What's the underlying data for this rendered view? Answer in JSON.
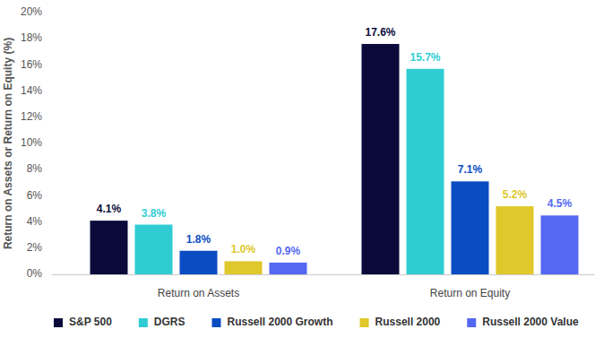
{
  "chart_data": {
    "type": "bar",
    "y_label": "Return on Assets or Return on Equity (%)",
    "categories": [
      "Return on Assets",
      "Return on Equity"
    ],
    "series": [
      {
        "name": "S&P 500",
        "color": "#0b0a3b",
        "values": [
          4.1,
          17.6
        ],
        "value_labels": [
          "4.1%",
          "17.6%"
        ]
      },
      {
        "name": "DGRS",
        "color": "#2fcdd3",
        "values": [
          3.8,
          15.7
        ],
        "value_labels": [
          "3.8%",
          "15.7%"
        ]
      },
      {
        "name": "Russell 2000 Growth",
        "color": "#0a4cc2",
        "values": [
          1.8,
          7.1
        ],
        "value_labels": [
          "1.8%",
          "7.1%"
        ]
      },
      {
        "name": "Russell 2000",
        "color": "#e0c72b",
        "values": [
          1.0,
          5.2
        ],
        "value_labels": [
          "1.0%",
          "5.2%"
        ]
      },
      {
        "name": "Russell 2000 Value",
        "color": "#5468f2",
        "values": [
          0.9,
          4.5
        ],
        "value_labels": [
          "0.9%",
          "4.5%"
        ]
      }
    ],
    "ylim": [
      0,
      20
    ],
    "yticks": [
      {
        "value": 0,
        "label": "0%"
      },
      {
        "value": 2,
        "label": "2%"
      },
      {
        "value": 4,
        "label": "4%"
      },
      {
        "value": 6,
        "label": "6%"
      },
      {
        "value": 8,
        "label": "8%"
      },
      {
        "value": 10,
        "label": "10%"
      },
      {
        "value": 12,
        "label": "12%"
      },
      {
        "value": 14,
        "label": "14%"
      },
      {
        "value": 16,
        "label": "16%"
      },
      {
        "value": 18,
        "label": "18%"
      },
      {
        "value": 20,
        "label": "20%"
      }
    ],
    "grid": false,
    "legend": "bottom",
    "data_labels": true
  }
}
